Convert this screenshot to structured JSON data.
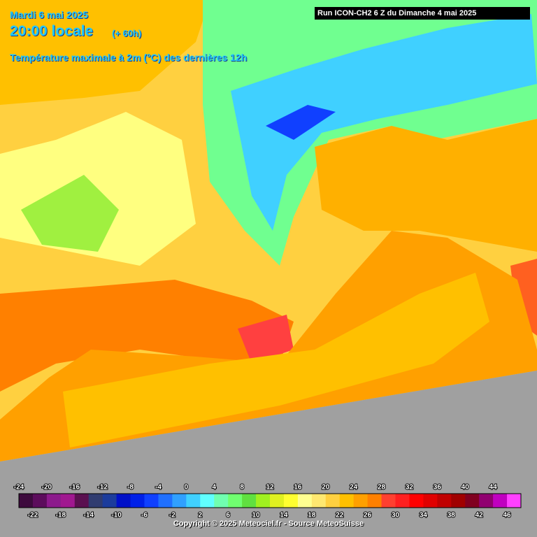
{
  "header": {
    "date": "Mardi 6 mai 2025",
    "time": "20:00 locale",
    "lead": "(+ 60h)",
    "parameter": "Température maximale à 2m (°C) des dernières 12h",
    "run": "Run ICON-CH2 6 Z du Dimanche 4 mai 2025"
  },
  "legend": {
    "top_labels": [
      -24,
      -20,
      -16,
      -12,
      -8,
      -4,
      0,
      4,
      8,
      12,
      16,
      20,
      24,
      28,
      32,
      36,
      40,
      44
    ],
    "bottom_labels": [
      -22,
      -18,
      -14,
      -10,
      -6,
      -2,
      2,
      6,
      10,
      14,
      18,
      22,
      26,
      30,
      34,
      38,
      42,
      46
    ],
    "colors": [
      "#3d0a3d",
      "#5c0c5c",
      "#8c1a8c",
      "#a01890",
      "#5a1050",
      "#303c70",
      "#1c3c9c",
      "#0010c8",
      "#0020e8",
      "#1040ff",
      "#2070ff",
      "#30a0ff",
      "#40d0ff",
      "#60ffff",
      "#70ffb0",
      "#70ff70",
      "#60e040",
      "#a0f020",
      "#e0f020",
      "#ffff30",
      "#ffff90",
      "#ffe870",
      "#ffd040",
      "#ffc000",
      "#ffa000",
      "#ff8000",
      "#ff4030",
      "#ff2020",
      "#ff0000",
      "#e00000",
      "#c00000",
      "#a00000",
      "#800020",
      "#900070",
      "#c000c0",
      "#ff40ff"
    ]
  },
  "footer": {
    "copyright": "Copyright © 2025 Meteociel.fr - Source MeteoSuisse"
  }
}
